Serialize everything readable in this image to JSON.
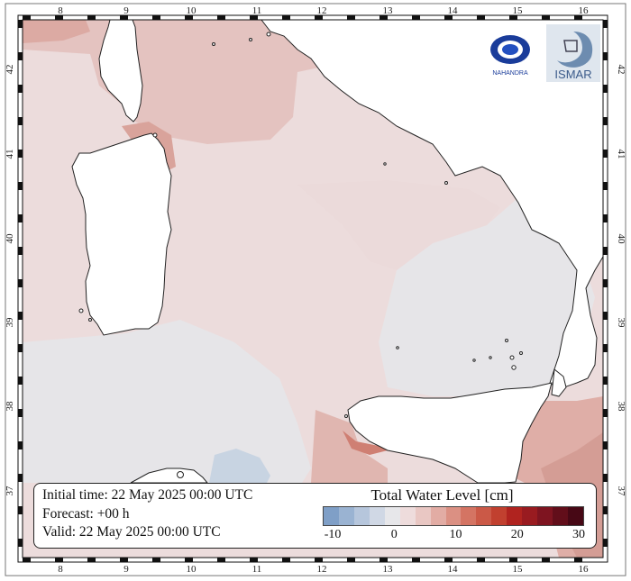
{
  "map": {
    "lon_ticks": [
      "8",
      "9",
      "10",
      "11",
      "12",
      "13",
      "14",
      "15",
      "16"
    ],
    "lat_ticks": [
      "42",
      "41",
      "40",
      "39",
      "38",
      "37"
    ],
    "colors": {
      "sea_light_pink": "#ecdcdc",
      "sea_pink": "#e4c3c0",
      "sea_grey": "#e6e5e8",
      "sea_blue": "#c8d4e2",
      "sea_red": "#d98a80",
      "land": "#ffffff"
    }
  },
  "info": {
    "initial_time": "Initial time: 22 May 2025 00:00 UTC",
    "forecast": "Forecast: +00 h",
    "valid": "Valid: 22 May 2025 00:00 UTC"
  },
  "colorbar": {
    "title": "Total Water Level [cm]",
    "tick_labels": [
      "-10",
      "0",
      "10",
      "20",
      "30"
    ],
    "colors": [
      "#7f9fc7",
      "#9ab3d2",
      "#b6c6dc",
      "#d0d8e5",
      "#e7e7ea",
      "#eedcdc",
      "#e9c7c3",
      "#e2aca4",
      "#db9083",
      "#d47463",
      "#cb5947",
      "#c1402f",
      "#b0231f",
      "#991b20",
      "#7e1420",
      "#620e1a",
      "#470815"
    ]
  },
  "logos": {
    "left_name": "NAHANDRA",
    "right_name": "ISMAR"
  }
}
